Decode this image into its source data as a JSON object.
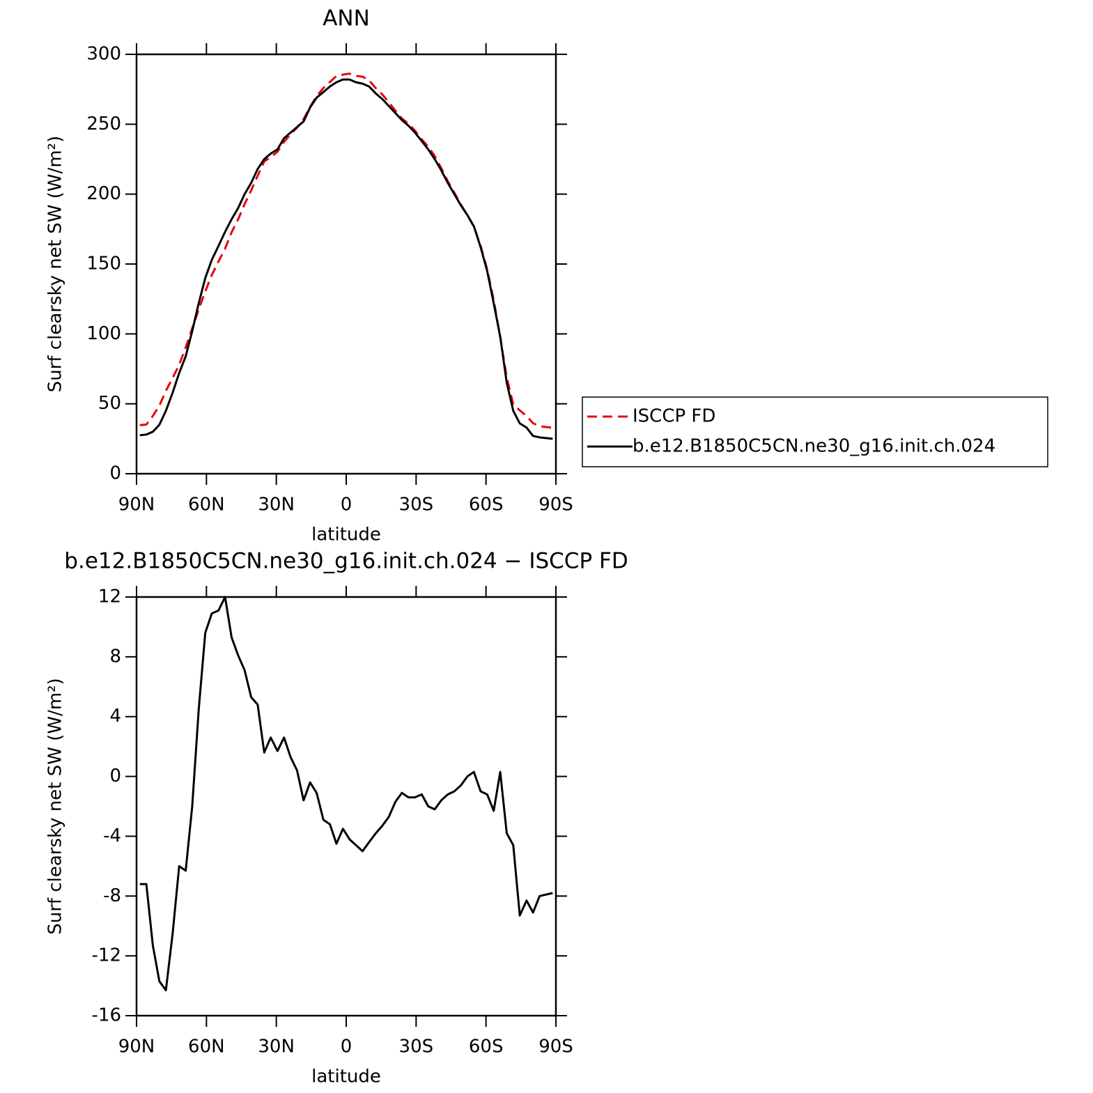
{
  "chart_data": [
    {
      "type": "line",
      "title": "ANN",
      "xlabel": "latitude",
      "ylabel": "Surf clearsky net SW (W/m²)",
      "x": [
        88.6,
        85.8,
        83.0,
        80.2,
        77.4,
        74.5,
        71.7,
        68.9,
        66.1,
        63.3,
        60.5,
        57.7,
        54.8,
        52.0,
        49.2,
        46.4,
        43.6,
        40.8,
        38.0,
        35.2,
        32.4,
        29.5,
        26.7,
        23.9,
        21.1,
        18.3,
        15.5,
        12.7,
        9.8,
        7.0,
        4.2,
        1.4,
        -1.4,
        -4.2,
        -7.0,
        -9.8,
        -12.7,
        -15.5,
        -18.3,
        -21.1,
        -23.9,
        -26.7,
        -29.5,
        -32.4,
        -35.2,
        -38.0,
        -40.8,
        -43.6,
        -46.4,
        -49.2,
        -52.0,
        -54.8,
        -57.7,
        -60.5,
        -63.3,
        -66.1,
        -68.9,
        -71.7,
        -74.5,
        -77.4,
        -80.2,
        -83.0,
        -85.8,
        -88.6
      ],
      "series": [
        {
          "name": "ISCCP FD",
          "color": "#e8000b",
          "line_style": "dashed",
          "values": [
            34.7,
            35.2,
            41.3,
            48.7,
            59.3,
            68.5,
            78,
            90.3,
            104,
            117.5,
            130.4,
            142.1,
            151.9,
            161,
            172.7,
            181.9,
            192.9,
            202.7,
            213.2,
            223.4,
            226.4,
            230.3,
            237.4,
            242.7,
            247.6,
            253.6,
            262.4,
            270.1,
            275.9,
            280.2,
            284.5,
            285.5,
            286.2,
            284.6,
            284,
            281.4,
            275.8,
            271.3,
            265.7,
            259.7,
            254.1,
            250.4,
            245.4,
            239.2,
            234,
            227.2,
            218.6,
            209.2,
            201,
            192.6,
            185,
            176.7,
            163,
            146.2,
            124.3,
            97.7,
            68.8,
            49.6,
            45.3,
            41.3,
            36.1,
            34,
            33.4,
            32.8
          ]
        },
        {
          "name": "b.e12.B1850C5CN.ne30_g16.init.ch.024",
          "color": "#000000",
          "line_style": "solid",
          "values": [
            27.5,
            28,
            30,
            35,
            45,
            58,
            72,
            84,
            102,
            122,
            140,
            153,
            163,
            173,
            182,
            190,
            200,
            208,
            218,
            225,
            229,
            232,
            240,
            244,
            248,
            252,
            262,
            269,
            273,
            277,
            280,
            282,
            282,
            280,
            279,
            277,
            272,
            268,
            263,
            258,
            253,
            249,
            244,
            238,
            232,
            225,
            217,
            208,
            200,
            192,
            185,
            177,
            162,
            145,
            122,
            98,
            65,
            45,
            36,
            33,
            27,
            26,
            25.5,
            25
          ]
        }
      ],
      "xlim": [
        90,
        -90
      ],
      "xticks": [
        {
          "value": 90,
          "label": "90N"
        },
        {
          "value": 60,
          "label": "60N"
        },
        {
          "value": 30,
          "label": "30N"
        },
        0,
        {
          "value": -30,
          "label": "30S"
        },
        {
          "value": -60,
          "label": "60S"
        },
        {
          "value": -90,
          "label": "90S"
        }
      ],
      "ylim": [
        0,
        300
      ],
      "yticks": [
        0,
        50,
        100,
        150,
        200,
        250,
        300
      ],
      "legend": "right"
    },
    {
      "type": "line",
      "title": "b.e12.B1850C5CN.ne30_g16.init.ch.024 − ISCCP FD",
      "xlabel": "latitude",
      "ylabel": "Surf clearsky net SW (W/m²)",
      "x": [
        88.6,
        85.8,
        83.0,
        80.2,
        77.4,
        74.5,
        71.7,
        68.9,
        66.1,
        63.3,
        60.5,
        57.7,
        54.8,
        52.0,
        49.2,
        46.4,
        43.6,
        40.8,
        38.0,
        35.2,
        32.4,
        29.5,
        26.7,
        23.9,
        21.1,
        18.3,
        15.5,
        12.7,
        9.8,
        7.0,
        4.2,
        1.4,
        -1.4,
        -4.2,
        -7.0,
        -9.8,
        -12.7,
        -15.5,
        -18.3,
        -21.1,
        -23.9,
        -26.7,
        -29.5,
        -32.4,
        -35.2,
        -38.0,
        -40.8,
        -43.6,
        -46.4,
        -49.2,
        -52.0,
        -54.8,
        -57.7,
        -60.5,
        -63.3,
        -66.1,
        -68.9,
        -71.7,
        -74.5,
        -77.4,
        -80.2,
        -83.0,
        -85.8,
        -88.6
      ],
      "series": [
        {
          "color": "#000000",
          "line_style": "solid",
          "values": [
            -7.2,
            -7.2,
            -11.3,
            -13.7,
            -14.3,
            -10.5,
            -6.0,
            -6.3,
            -2.0,
            4.5,
            9.6,
            10.9,
            11.1,
            12.0,
            9.3,
            8.1,
            7.1,
            5.3,
            4.8,
            1.6,
            2.6,
            1.7,
            2.6,
            1.3,
            0.4,
            -1.6,
            -0.4,
            -1.1,
            -2.9,
            -3.2,
            -4.5,
            -3.5,
            -4.2,
            -4.6,
            -5.0,
            -4.4,
            -3.8,
            -3.3,
            -2.7,
            -1.7,
            -1.1,
            -1.4,
            -1.4,
            -1.2,
            -2.0,
            -2.2,
            -1.6,
            -1.2,
            -1.0,
            -0.6,
            0.0,
            0.3,
            -1.0,
            -1.2,
            -2.3,
            0.3,
            -3.8,
            -4.6,
            -9.3,
            -8.3,
            -9.1,
            -8.0,
            -7.9,
            -7.8
          ]
        }
      ],
      "xlim": [
        90,
        -90
      ],
      "xticks": [
        {
          "value": 90,
          "label": "90N"
        },
        {
          "value": 60,
          "label": "60N"
        },
        {
          "value": 30,
          "label": "30N"
        },
        0,
        {
          "value": -30,
          "label": "30S"
        },
        {
          "value": -60,
          "label": "60S"
        },
        {
          "value": -90,
          "label": "90S"
        }
      ],
      "ylim": [
        -16,
        12
      ],
      "yticks": [
        -16,
        -12,
        -8,
        -4,
        0,
        4,
        8,
        12
      ]
    }
  ]
}
